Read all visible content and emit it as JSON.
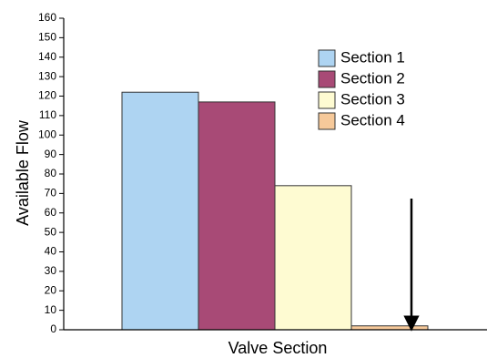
{
  "chart_data": {
    "type": "bar",
    "x_label": "Valve Section",
    "y_label": "Available Flow",
    "categories": [
      null
    ],
    "series": [
      {
        "name": "Section 1",
        "color": "#aed4f2",
        "values": [
          122
        ]
      },
      {
        "name": "Section 2",
        "color": "#a84a76",
        "values": [
          117
        ]
      },
      {
        "name": "Section 3",
        "color": "#fefbd2",
        "values": [
          74
        ]
      },
      {
        "name": "Section 4",
        "color": "#f6c99a",
        "values": [
          2
        ]
      }
    ],
    "ylim": [
      0,
      160
    ],
    "yticks": [
      0,
      10,
      20,
      30,
      40,
      50,
      60,
      70,
      80,
      90,
      100,
      110,
      120,
      130,
      140,
      150,
      160
    ],
    "grid": false,
    "legend": "upper right"
  }
}
